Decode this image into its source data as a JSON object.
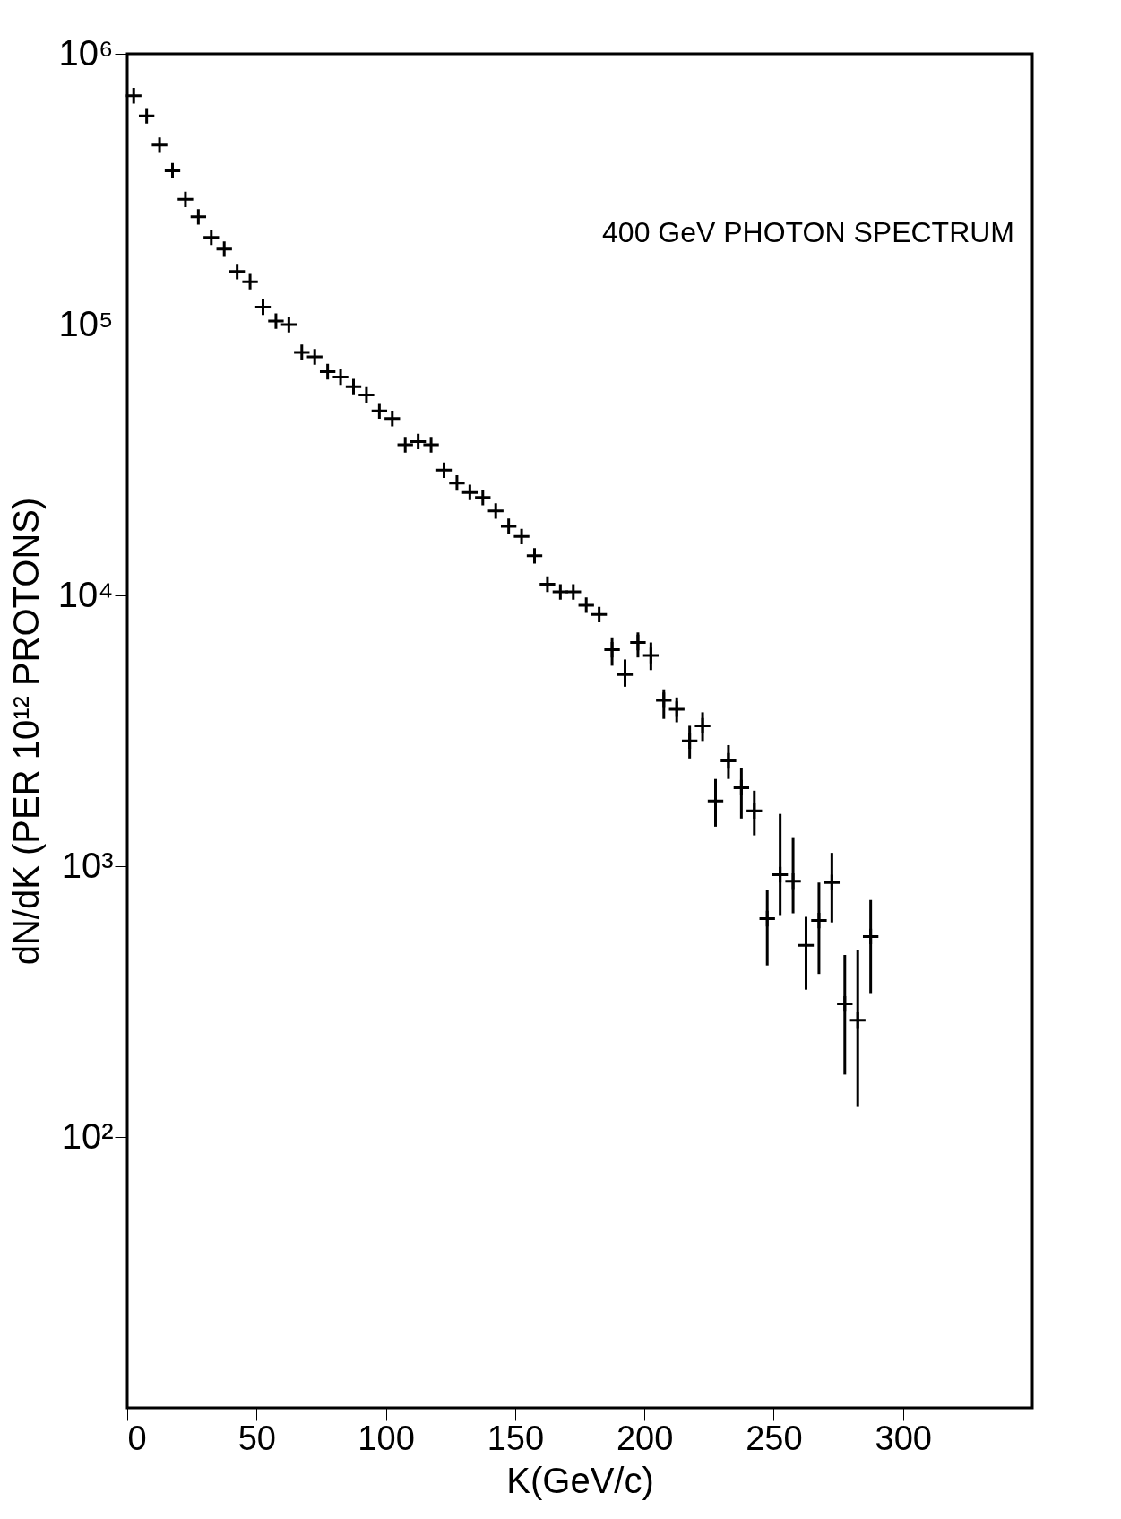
{
  "chart_data": {
    "type": "scatter",
    "xlabel": "K(GeV/c)",
    "ylabel": "dN/dK (PER 10¹² PROTONS)",
    "annotations": [
      "400 GeV PHOTON SPECTRUM"
    ],
    "x": [
      2.5,
      7.5,
      12.5,
      17.5,
      22.5,
      27.5,
      32.5,
      37.5,
      42.5,
      47.5,
      52.5,
      57.5,
      62.5,
      67.5,
      72.5,
      77.5,
      82.5,
      87.5,
      92.5,
      97.5,
      102.5,
      107.5,
      112.5,
      117.5,
      122.5,
      127.5,
      132.5,
      137.5,
      142.5,
      147.5,
      152.5,
      157.5,
      162.5,
      167.5,
      172.5,
      177.5,
      182.5,
      187.5,
      192.5,
      197.5,
      202.5,
      207.5,
      212.5,
      217.5,
      222.5,
      227.5,
      232.5,
      237.5,
      242.5,
      247.5,
      252.5,
      257.5,
      262.5,
      267.5,
      272.5,
      277.5,
      282.5,
      287.5
    ],
    "series": [
      {
        "color": "#000000",
        "values": [
          700000,
          590000,
          460000,
          370000,
          290000,
          250000,
          210000,
          190000,
          157000,
          144000,
          116000,
          103000,
          100000,
          79000,
          76000,
          67000,
          64000,
          59000,
          55000,
          48000,
          45000,
          36000,
          37000,
          36000,
          29000,
          26000,
          24000,
          23000,
          20500,
          18000,
          16500,
          14000,
          11000,
          10300,
          10300,
          9200,
          8500,
          6300,
          5100,
          6700,
          6000,
          4100,
          3800,
          2900,
          3300,
          1740,
          2450,
          1950,
          1600,
          640,
          930,
          880,
          510,
          630,
          870,
          310,
          270,
          550
        ],
        "errors": [
          null,
          null,
          null,
          null,
          null,
          null,
          null,
          null,
          null,
          null,
          null,
          null,
          null,
          null,
          null,
          null,
          null,
          null,
          null,
          null,
          null,
          null,
          null,
          null,
          null,
          null,
          null,
          null,
          null,
          null,
          null,
          null,
          null,
          null,
          null,
          null,
          null,
          [
            5500,
            7000
          ],
          [
            4600,
            5800
          ],
          [
            5900,
            7300
          ],
          [
            5300,
            6700
          ],
          [
            3500,
            4500
          ],
          [
            3400,
            4200
          ],
          [
            2500,
            3300
          ],
          [
            2900,
            3700
          ],
          [
            1400,
            2100
          ],
          [
            2100,
            2800
          ],
          [
            1500,
            2300
          ],
          [
            1300,
            1900
          ],
          [
            430,
            820
          ],
          [
            660,
            1560
          ],
          [
            670,
            1280
          ],
          [
            350,
            650
          ],
          [
            400,
            870
          ],
          [
            620,
            1120
          ],
          [
            170,
            470
          ],
          [
            130,
            490
          ],
          [
            340,
            750
          ]
        ]
      }
    ],
    "marker": "cross",
    "log": true,
    "grid": false,
    "xlim": [
      0,
      350
    ],
    "xticks": [
      0,
      50,
      100,
      150,
      200,
      250,
      300
    ],
    "ylim": [
      10,
      1000000
    ],
    "yticks": [
      {
        "value": 100,
        "label": "10²"
      },
      {
        "value": 1000,
        "label": "10³"
      },
      {
        "value": 10000,
        "label": "10⁴"
      },
      {
        "value": 100000,
        "label": "10⁵"
      },
      {
        "value": 1000000,
        "label": "10⁶"
      }
    ]
  }
}
